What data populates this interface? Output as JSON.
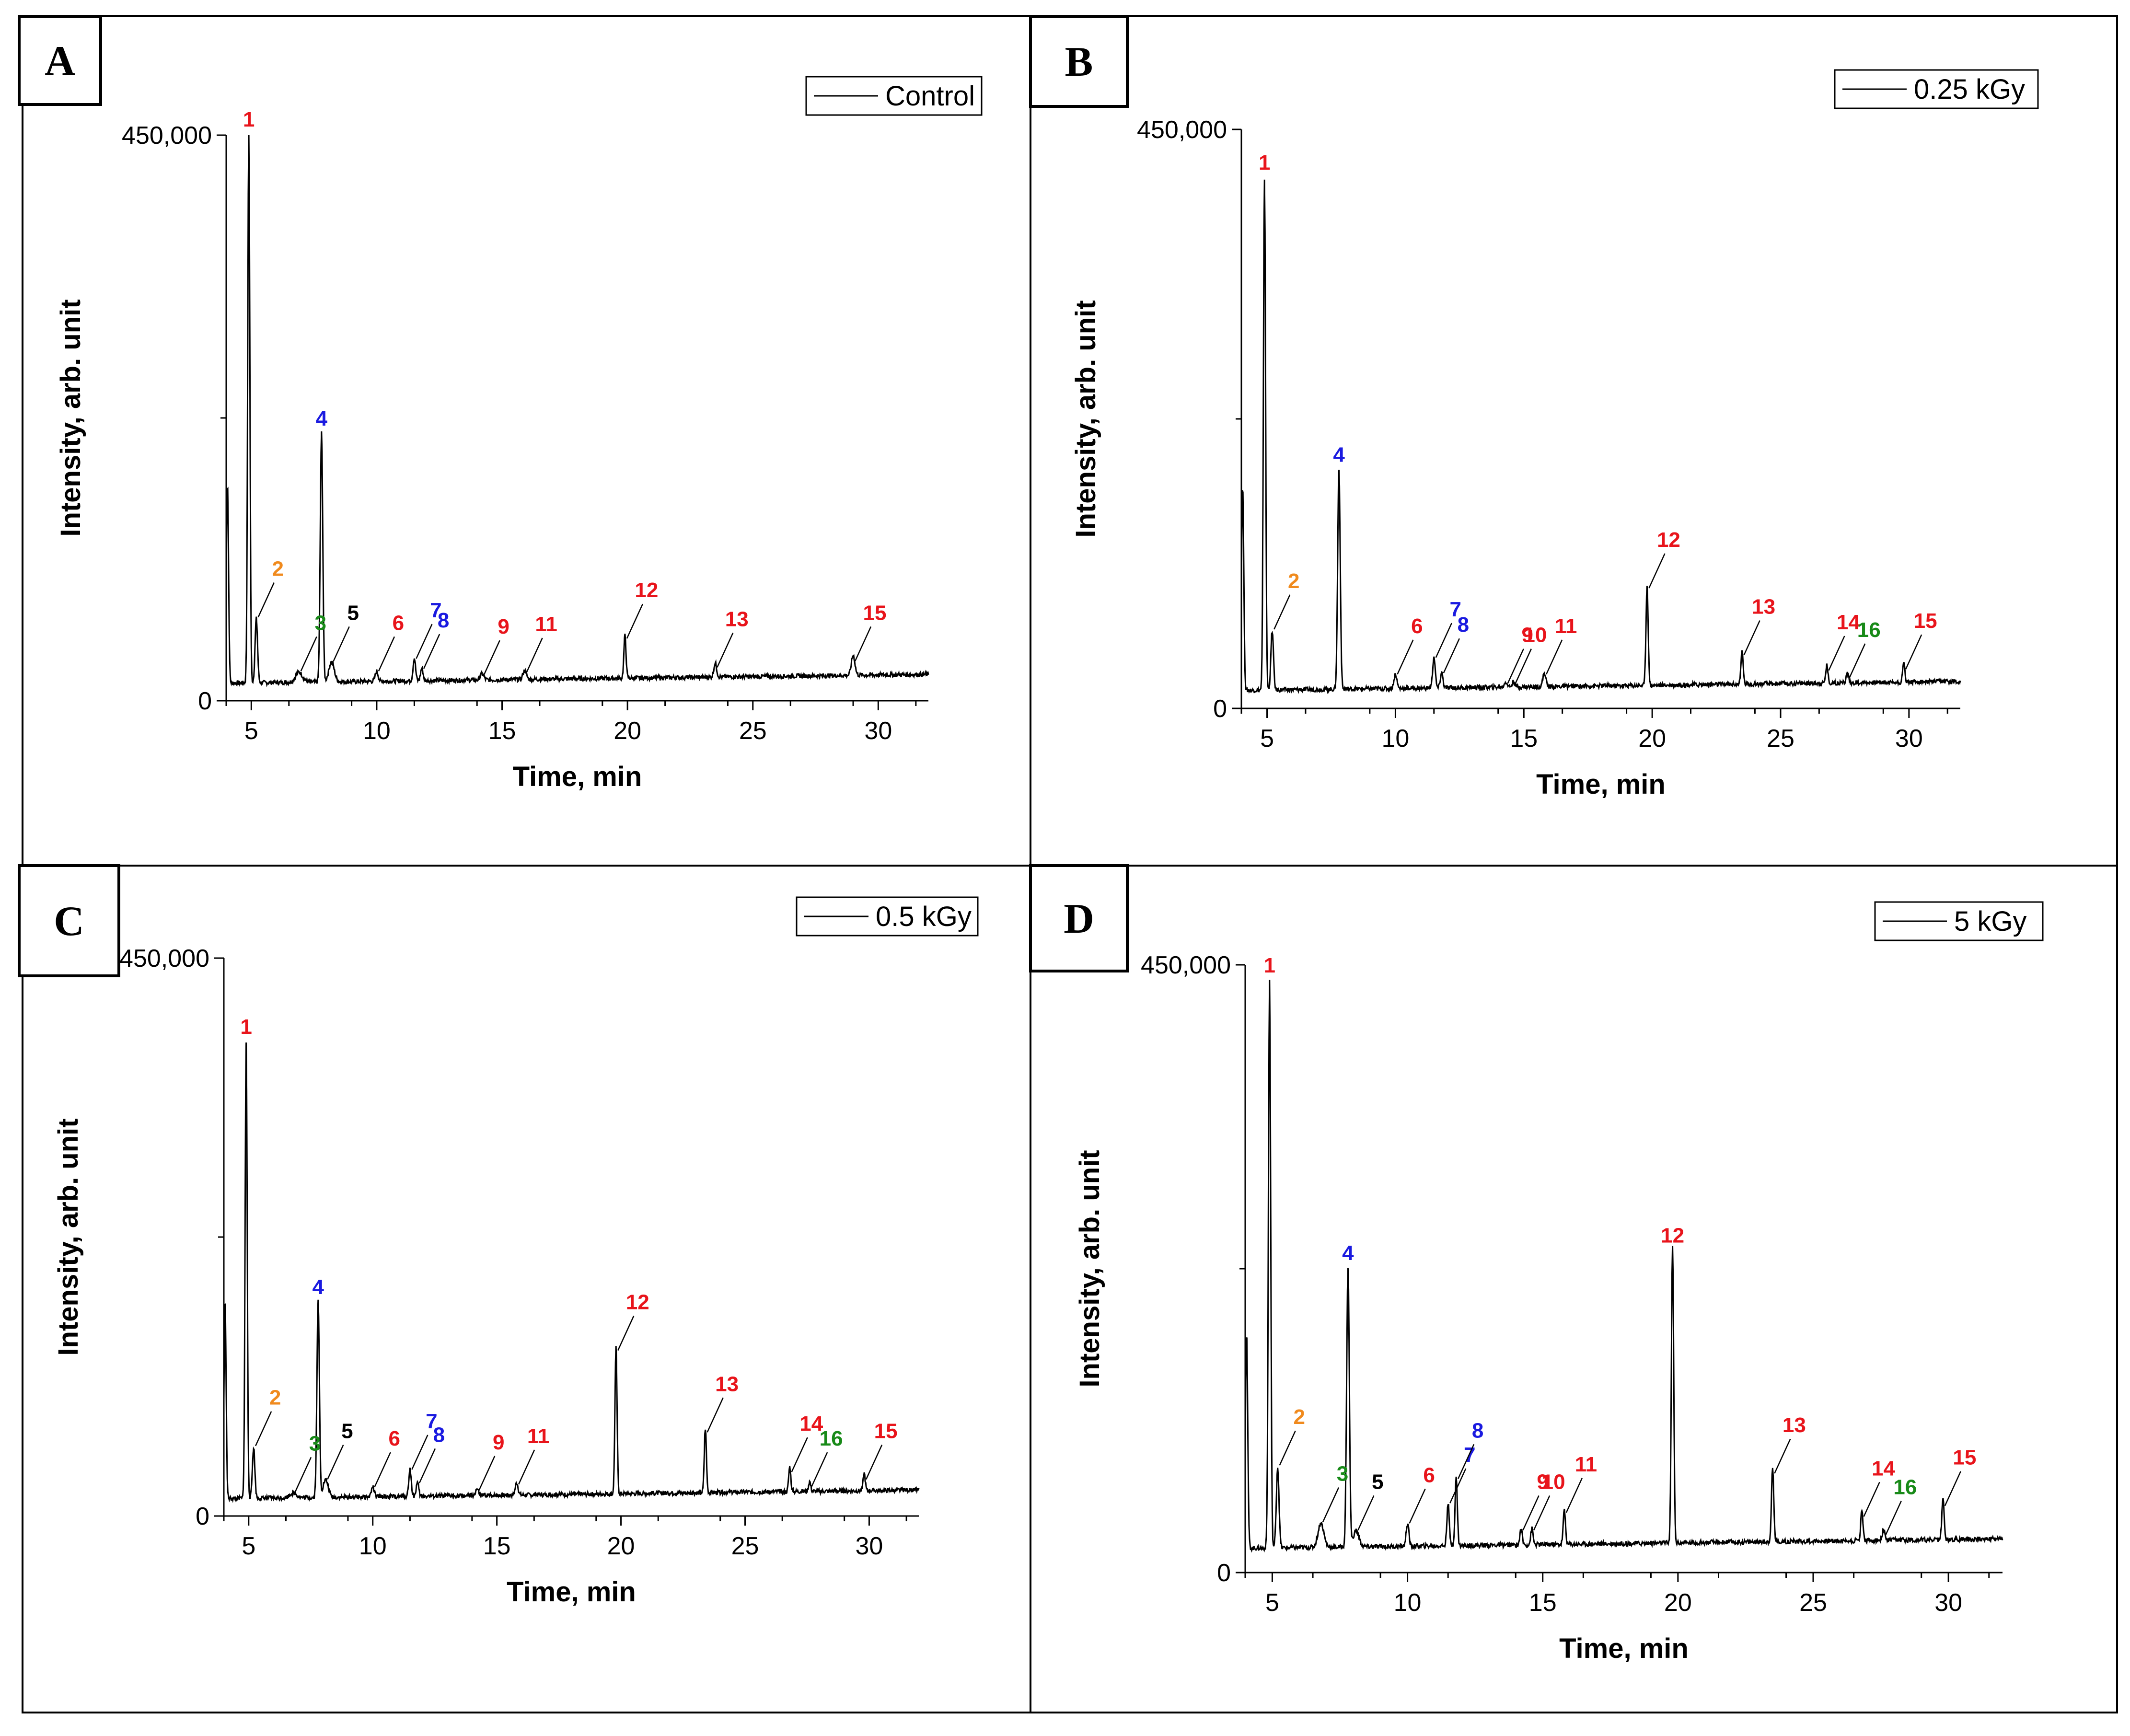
{
  "colors": {
    "red": "#e8141b",
    "orange": "#f08a1d",
    "green": "#188a18",
    "blue": "#1a1ae0",
    "black": "#000000"
  },
  "chart_data": [
    {
      "panel": "A",
      "type": "line",
      "legend": "Control",
      "legend_position": "top-right",
      "xlabel": "Time, min",
      "ylabel": "Intensity, arb. unit",
      "xlim": [
        4,
        32
      ],
      "ylim": [
        0,
        450000
      ],
      "xticks": [
        5,
        10,
        15,
        20,
        25,
        30
      ],
      "yticks": [
        0,
        450000
      ],
      "ytick_labels": [
        "0",
        "450,000"
      ],
      "grid": false,
      "baseline": 14000,
      "peaks": [
        {
          "label": "1",
          "x": 4.9,
          "y": 450000,
          "color": "red",
          "width": 0.06
        },
        {
          "label": "2",
          "x": 5.2,
          "y": 65000,
          "color": "orange",
          "width": 0.07
        },
        {
          "label": "3",
          "x": 6.9,
          "y": 22000,
          "color": "green",
          "width": 0.2
        },
        {
          "label": "4",
          "x": 7.8,
          "y": 212000,
          "color": "blue",
          "width": 0.07
        },
        {
          "label": "5",
          "x": 8.2,
          "y": 30000,
          "color": "black",
          "width": 0.15
        },
        {
          "label": "6",
          "x": 10.0,
          "y": 22000,
          "color": "red",
          "width": 0.08
        },
        {
          "label": "7",
          "x": 11.5,
          "y": 32000,
          "color": "blue",
          "width": 0.07
        },
        {
          "label": "8",
          "x": 11.8,
          "y": 24000,
          "color": "blue",
          "width": 0.07
        },
        {
          "label": "9",
          "x": 14.2,
          "y": 19000,
          "color": "red",
          "width": 0.1
        },
        {
          "label": "11",
          "x": 15.9,
          "y": 21000,
          "color": "red",
          "width": 0.1
        },
        {
          "label": "12",
          "x": 19.9,
          "y": 48000,
          "color": "red",
          "width": 0.06
        },
        {
          "label": "13",
          "x": 23.5,
          "y": 25000,
          "color": "red",
          "width": 0.08
        },
        {
          "label": "15",
          "x": 29.0,
          "y": 30000,
          "color": "red",
          "width": 0.1
        }
      ]
    },
    {
      "panel": "B",
      "type": "line",
      "legend": "0.25 kGy",
      "legend_position": "top-right",
      "xlabel": "Time, min",
      "ylabel": "Intensity, arb. unit",
      "xlim": [
        4,
        32
      ],
      "ylim": [
        0,
        450000
      ],
      "xticks": [
        5,
        10,
        15,
        20,
        25,
        30
      ],
      "yticks": [
        0,
        450000
      ],
      "ytick_labels": [
        "0",
        "450,000"
      ],
      "grid": false,
      "baseline": 14000,
      "peaks": [
        {
          "label": "1",
          "x": 4.9,
          "y": 412000,
          "color": "red",
          "width": 0.06
        },
        {
          "label": "2",
          "x": 5.2,
          "y": 60000,
          "color": "orange",
          "width": 0.07
        },
        {
          "label": "4",
          "x": 7.8,
          "y": 185000,
          "color": "blue",
          "width": 0.07
        },
        {
          "label": "6",
          "x": 10.0,
          "y": 25000,
          "color": "red",
          "width": 0.08
        },
        {
          "label": "7",
          "x": 11.5,
          "y": 38000,
          "color": "blue",
          "width": 0.07
        },
        {
          "label": "8",
          "x": 11.8,
          "y": 26000,
          "color": "blue",
          "width": 0.07
        },
        {
          "label": "9",
          "x": 14.3,
          "y": 18000,
          "color": "red",
          "width": 0.08
        },
        {
          "label": "10",
          "x": 14.6,
          "y": 18000,
          "color": "red",
          "width": 0.08
        },
        {
          "label": "11",
          "x": 15.8,
          "y": 25000,
          "color": "red",
          "width": 0.08
        },
        {
          "label": "12",
          "x": 19.8,
          "y": 92000,
          "color": "red",
          "width": 0.06
        },
        {
          "label": "13",
          "x": 23.5,
          "y": 40000,
          "color": "red",
          "width": 0.06
        },
        {
          "label": "14",
          "x": 26.8,
          "y": 28000,
          "color": "red",
          "width": 0.06
        },
        {
          "label": "16",
          "x": 27.6,
          "y": 22000,
          "color": "green",
          "width": 0.06
        },
        {
          "label": "15",
          "x": 29.8,
          "y": 29000,
          "color": "red",
          "width": 0.06
        }
      ]
    },
    {
      "panel": "C",
      "type": "line",
      "legend": "0.5 kGy",
      "legend_position": "top-right",
      "xlabel": "Time, min",
      "ylabel": "Intensity, arb. unit",
      "xlim": [
        4,
        32
      ],
      "ylim": [
        0,
        450000
      ],
      "xticks": [
        5,
        10,
        15,
        20,
        25,
        30
      ],
      "yticks": [
        0,
        450000
      ],
      "ytick_labels": [
        "0",
        "450,000"
      ],
      "grid": false,
      "baseline": 14000,
      "peaks": [
        {
          "label": "1",
          "x": 4.9,
          "y": 382000,
          "color": "red",
          "width": 0.06
        },
        {
          "label": "2",
          "x": 5.2,
          "y": 55000,
          "color": "orange",
          "width": 0.07
        },
        {
          "label": "3",
          "x": 6.8,
          "y": 18000,
          "color": "green",
          "width": 0.2
        },
        {
          "label": "4",
          "x": 7.8,
          "y": 172000,
          "color": "blue",
          "width": 0.07
        },
        {
          "label": "5",
          "x": 8.1,
          "y": 28000,
          "color": "black",
          "width": 0.15
        },
        {
          "label": "6",
          "x": 10.0,
          "y": 22000,
          "color": "red",
          "width": 0.08
        },
        {
          "label": "7",
          "x": 11.5,
          "y": 36000,
          "color": "blue",
          "width": 0.07
        },
        {
          "label": "8",
          "x": 11.8,
          "y": 25000,
          "color": "blue",
          "width": 0.07
        },
        {
          "label": "9",
          "x": 14.2,
          "y": 19000,
          "color": "red",
          "width": 0.08
        },
        {
          "label": "11",
          "x": 15.8,
          "y": 24000,
          "color": "red",
          "width": 0.08
        },
        {
          "label": "12",
          "x": 19.8,
          "y": 132000,
          "color": "red",
          "width": 0.06
        },
        {
          "label": "13",
          "x": 23.4,
          "y": 66000,
          "color": "red",
          "width": 0.06
        },
        {
          "label": "14",
          "x": 26.8,
          "y": 34000,
          "color": "red",
          "width": 0.06
        },
        {
          "label": "16",
          "x": 27.6,
          "y": 22000,
          "color": "green",
          "width": 0.06
        },
        {
          "label": "15",
          "x": 29.8,
          "y": 28000,
          "color": "red",
          "width": 0.06
        }
      ]
    },
    {
      "panel": "D",
      "type": "line",
      "legend": "5 kGy",
      "legend_position": "top-right",
      "xlabel": "Time, min",
      "ylabel": "Intensity, arb. unit",
      "xlim": [
        4,
        32
      ],
      "ylim": [
        0,
        450000
      ],
      "xticks": [
        5,
        10,
        15,
        20,
        25,
        30
      ],
      "yticks": [
        0,
        450000
      ],
      "ytick_labels": [
        "0",
        "450,000"
      ],
      "grid": false,
      "baseline": 18000,
      "peaks": [
        {
          "label": "1",
          "x": 4.9,
          "y": 438000,
          "color": "red",
          "width": 0.06
        },
        {
          "label": "2",
          "x": 5.2,
          "y": 78000,
          "color": "orange",
          "width": 0.07
        },
        {
          "label": "3",
          "x": 6.8,
          "y": 36000,
          "color": "green",
          "width": 0.15
        },
        {
          "label": "4",
          "x": 7.8,
          "y": 225000,
          "color": "blue",
          "width": 0.07
        },
        {
          "label": "5",
          "x": 8.1,
          "y": 30000,
          "color": "black",
          "width": 0.15
        },
        {
          "label": "6",
          "x": 10.0,
          "y": 35000,
          "color": "red",
          "width": 0.07
        },
        {
          "label": "7",
          "x": 11.5,
          "y": 50000,
          "color": "blue",
          "width": 0.06
        },
        {
          "label": "8",
          "x": 11.8,
          "y": 68000,
          "color": "blue",
          "width": 0.06
        },
        {
          "label": "9",
          "x": 14.2,
          "y": 30000,
          "color": "red",
          "width": 0.06
        },
        {
          "label": "10",
          "x": 14.6,
          "y": 30000,
          "color": "red",
          "width": 0.06
        },
        {
          "label": "11",
          "x": 15.8,
          "y": 43000,
          "color": "red",
          "width": 0.06
        },
        {
          "label": "12",
          "x": 19.8,
          "y": 238000,
          "color": "red",
          "width": 0.06
        },
        {
          "label": "13",
          "x": 23.5,
          "y": 72000,
          "color": "red",
          "width": 0.06
        },
        {
          "label": "14",
          "x": 26.8,
          "y": 40000,
          "color": "red",
          "width": 0.06
        },
        {
          "label": "16",
          "x": 27.6,
          "y": 26000,
          "color": "green",
          "width": 0.06
        },
        {
          "label": "15",
          "x": 29.8,
          "y": 48000,
          "color": "red",
          "width": 0.06
        }
      ]
    }
  ]
}
